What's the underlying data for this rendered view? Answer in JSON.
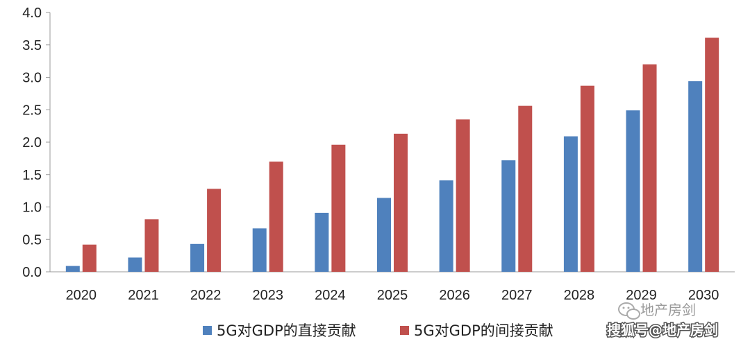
{
  "chart_data": {
    "type": "bar",
    "categories": [
      "2020",
      "2021",
      "2022",
      "2023",
      "2024",
      "2025",
      "2026",
      "2027",
      "2028",
      "2029",
      "2030"
    ],
    "series": [
      {
        "name": "5G对GDP的直接贡献",
        "color": "#4f81bd",
        "values": [
          0.09,
          0.22,
          0.43,
          0.67,
          0.91,
          1.14,
          1.41,
          1.72,
          2.09,
          2.49,
          2.94
        ]
      },
      {
        "name": "5G对GDP的间接贡献",
        "color": "#c0504d",
        "values": [
          0.42,
          0.81,
          1.28,
          1.7,
          1.96,
          2.13,
          2.35,
          2.56,
          2.87,
          3.2,
          3.61
        ]
      }
    ],
    "yticks": [
      "0.0",
      "0.5",
      "1.0",
      "1.5",
      "2.0",
      "2.5",
      "3.0",
      "3.5",
      "4.0"
    ],
    "ylim": [
      0,
      4.0
    ],
    "grid": false,
    "legend_position": "bottom",
    "title": "",
    "xlabel": "",
    "ylabel": ""
  },
  "watermarks": {
    "wechat": "地产房剑",
    "sohu": "搜狐号@地产房剑"
  }
}
